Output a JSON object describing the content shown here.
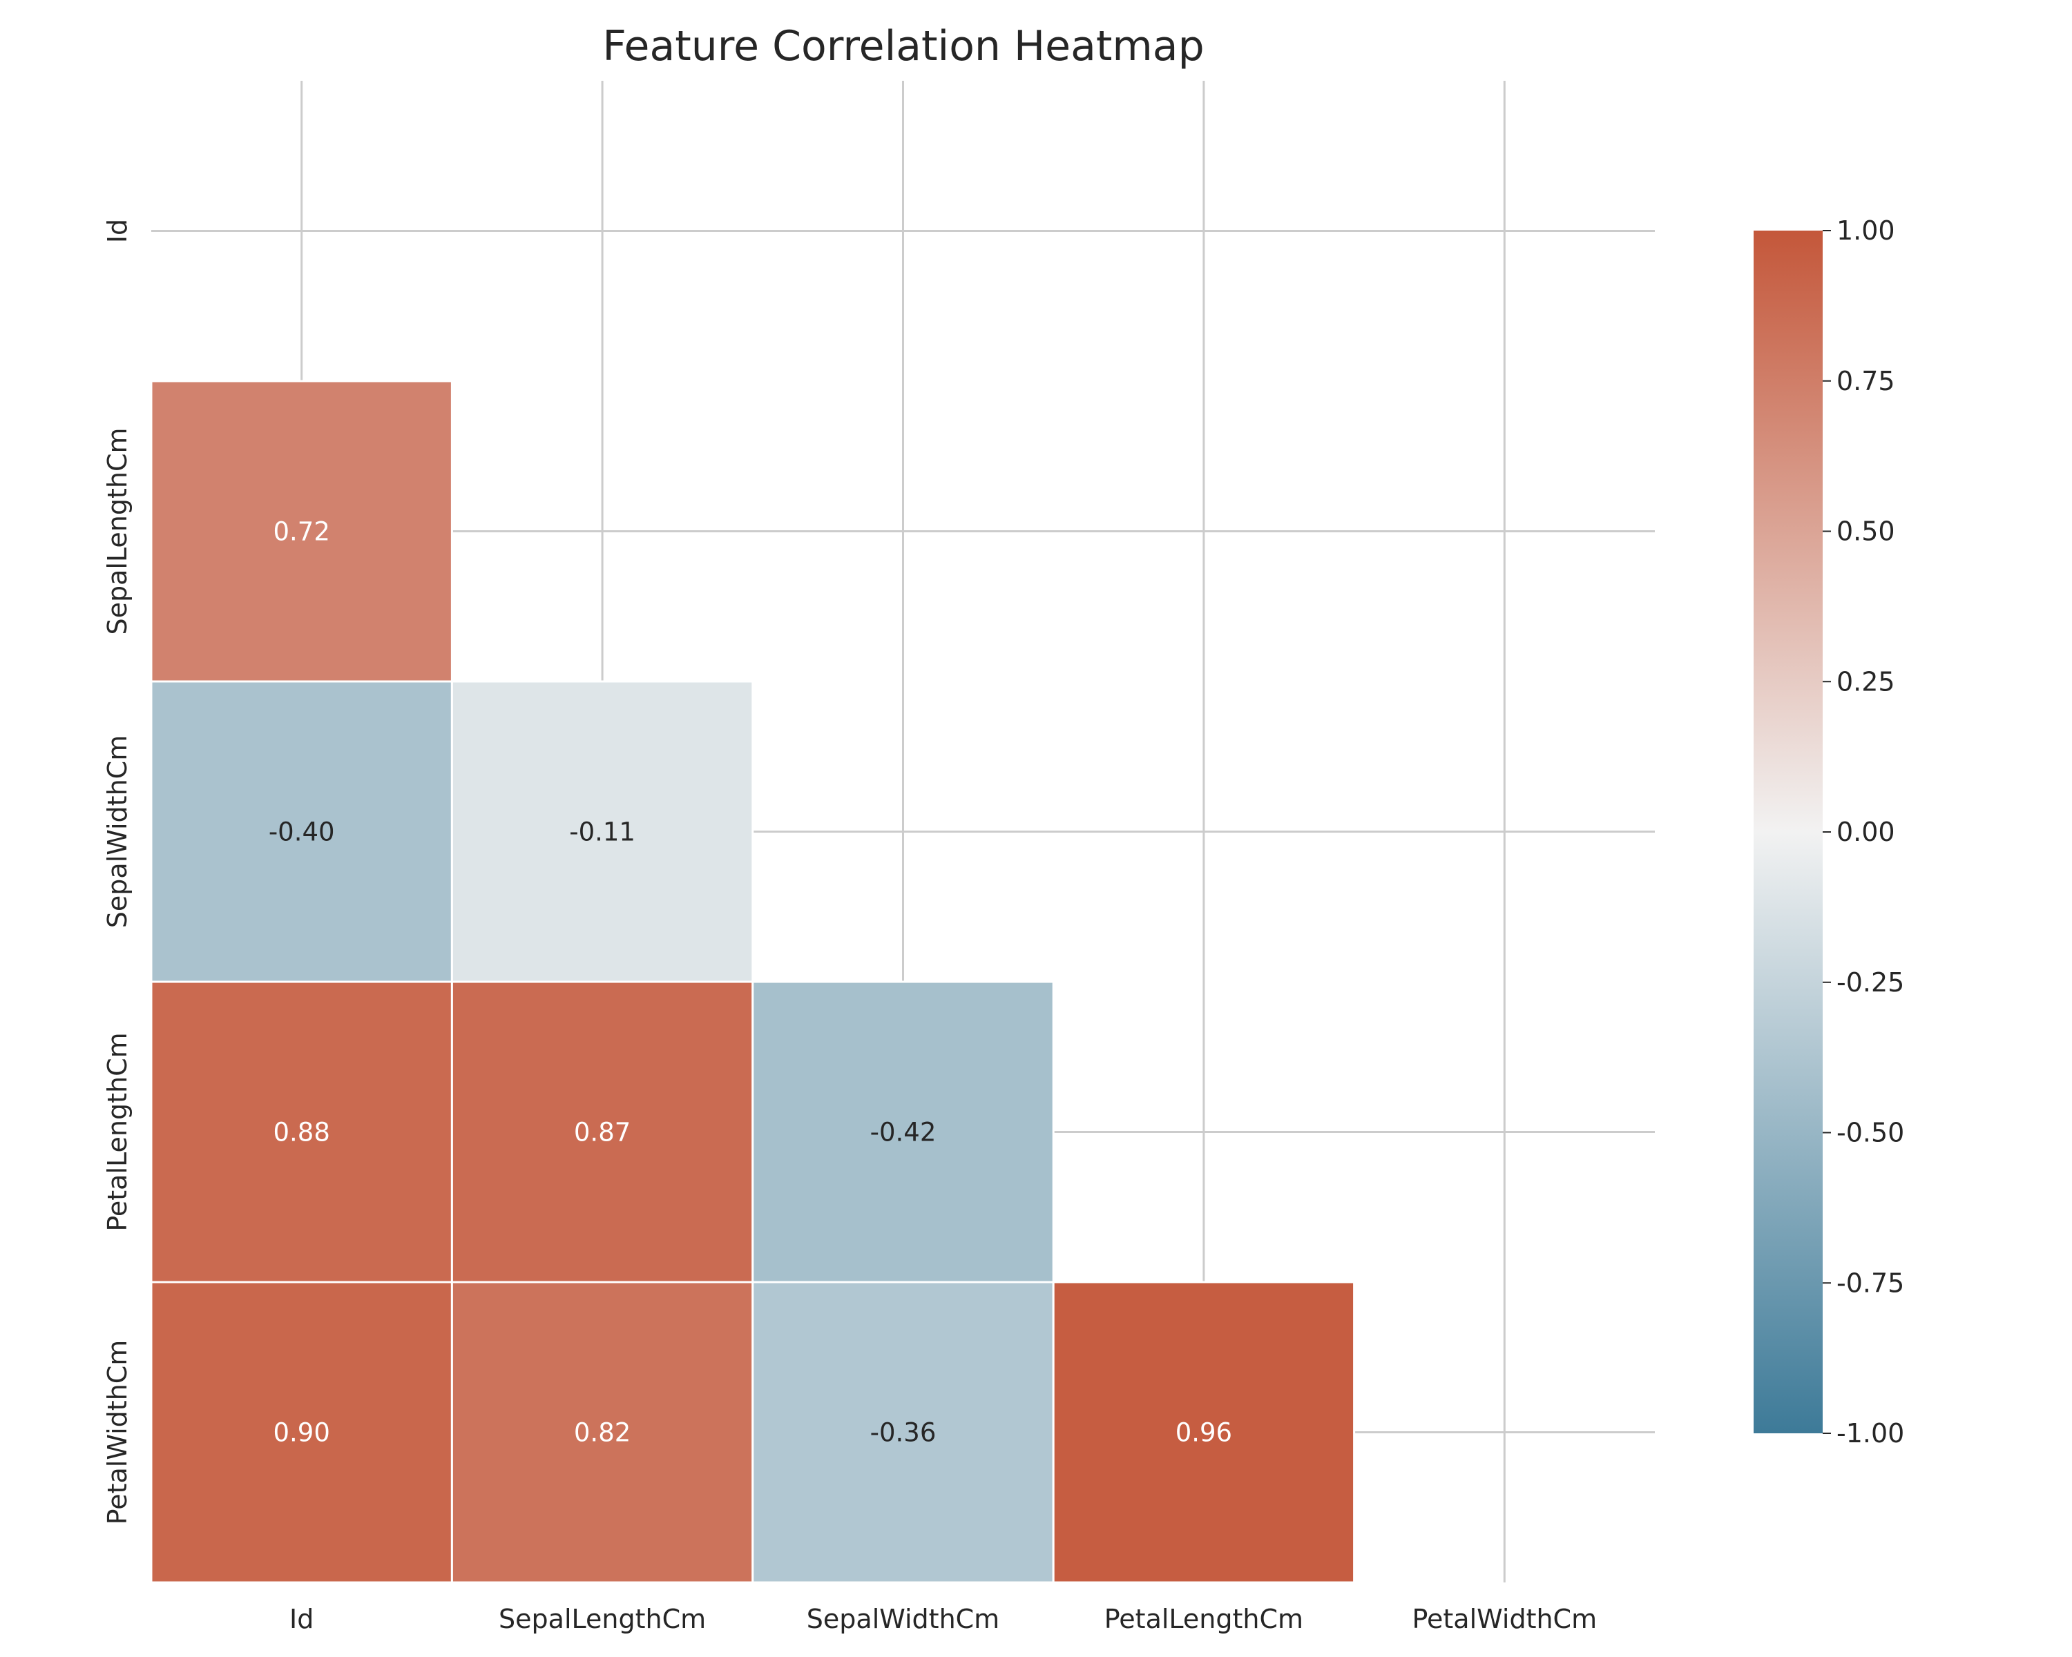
{
  "chart_data": {
    "type": "heatmap",
    "title": "Feature Correlation Heatmap",
    "xlabel": "",
    "ylabel": "",
    "x_categories": [
      "Id",
      "SepalLengthCm",
      "SepalWidthCm",
      "PetalLengthCm",
      "PetalWidthCm"
    ],
    "y_categories": [
      "Id",
      "SepalLengthCm",
      "SepalWidthCm",
      "PetalLengthCm",
      "PetalWidthCm"
    ],
    "mask": "upper triangle including diagonal",
    "cells": [
      {
        "row": "SepalLengthCm",
        "col": "Id",
        "value": 0.72,
        "label": "0.72"
      },
      {
        "row": "SepalWidthCm",
        "col": "Id",
        "value": -0.4,
        "label": "-0.40"
      },
      {
        "row": "SepalWidthCm",
        "col": "SepalLengthCm",
        "value": -0.11,
        "label": "-0.11"
      },
      {
        "row": "PetalLengthCm",
        "col": "Id",
        "value": 0.88,
        "label": "0.88"
      },
      {
        "row": "PetalLengthCm",
        "col": "SepalLengthCm",
        "value": 0.87,
        "label": "0.87"
      },
      {
        "row": "PetalLengthCm",
        "col": "SepalWidthCm",
        "value": -0.42,
        "label": "-0.42"
      },
      {
        "row": "PetalWidthCm",
        "col": "Id",
        "value": 0.9,
        "label": "0.90"
      },
      {
        "row": "PetalWidthCm",
        "col": "SepalLengthCm",
        "value": 0.82,
        "label": "0.82"
      },
      {
        "row": "PetalWidthCm",
        "col": "SepalWidthCm",
        "value": -0.36,
        "label": "-0.36"
      },
      {
        "row": "PetalWidthCm",
        "col": "PetalLengthCm",
        "value": 0.96,
        "label": "0.96"
      }
    ],
    "colorbar": {
      "range": [
        -1.0,
        1.0
      ],
      "ticks": [
        "1.00",
        "0.75",
        "0.50",
        "0.25",
        "0.00",
        "-0.25",
        "-0.50",
        "-0.75",
        "-1.00"
      ],
      "colors": {
        "negative": "#3d7a98",
        "center": "#f2f2f2",
        "positive": "#c4573a"
      }
    },
    "grid": true
  }
}
